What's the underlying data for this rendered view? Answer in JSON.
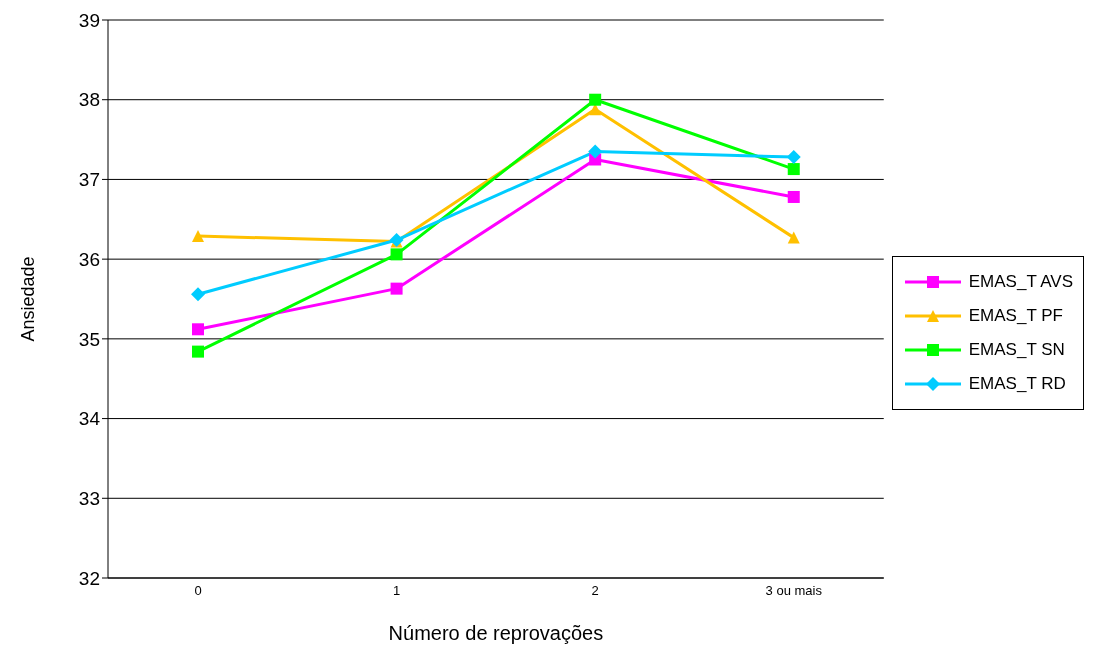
{
  "chart_data": {
    "type": "line",
    "xlabel": "Número de reprovações",
    "ylabel": "Ansiedade",
    "categories": [
      "0",
      "1",
      "2",
      "3 ou mais"
    ],
    "series": [
      {
        "name": "EMAS_T AVS",
        "color": "#ff00ff",
        "marker": "square",
        "values": [
          35.12,
          35.63,
          37.25,
          36.78
        ]
      },
      {
        "name": "EMAS_T PF",
        "color": "#ffc000",
        "marker": "triangle",
        "values": [
          36.29,
          36.22,
          37.88,
          36.27
        ]
      },
      {
        "name": "EMAS_T SN",
        "color": "#00ff00",
        "marker": "square",
        "values": [
          34.84,
          36.06,
          38.0,
          37.13
        ]
      },
      {
        "name": "EMAS_T RD",
        "color": "#00ccff",
        "marker": "diamond",
        "values": [
          35.56,
          36.24,
          37.35,
          37.28
        ]
      }
    ],
    "ylim": [
      32,
      39
    ],
    "yticks": [
      32,
      33,
      34,
      35,
      36,
      37,
      38,
      39
    ],
    "grid": "y",
    "legend": "right"
  }
}
